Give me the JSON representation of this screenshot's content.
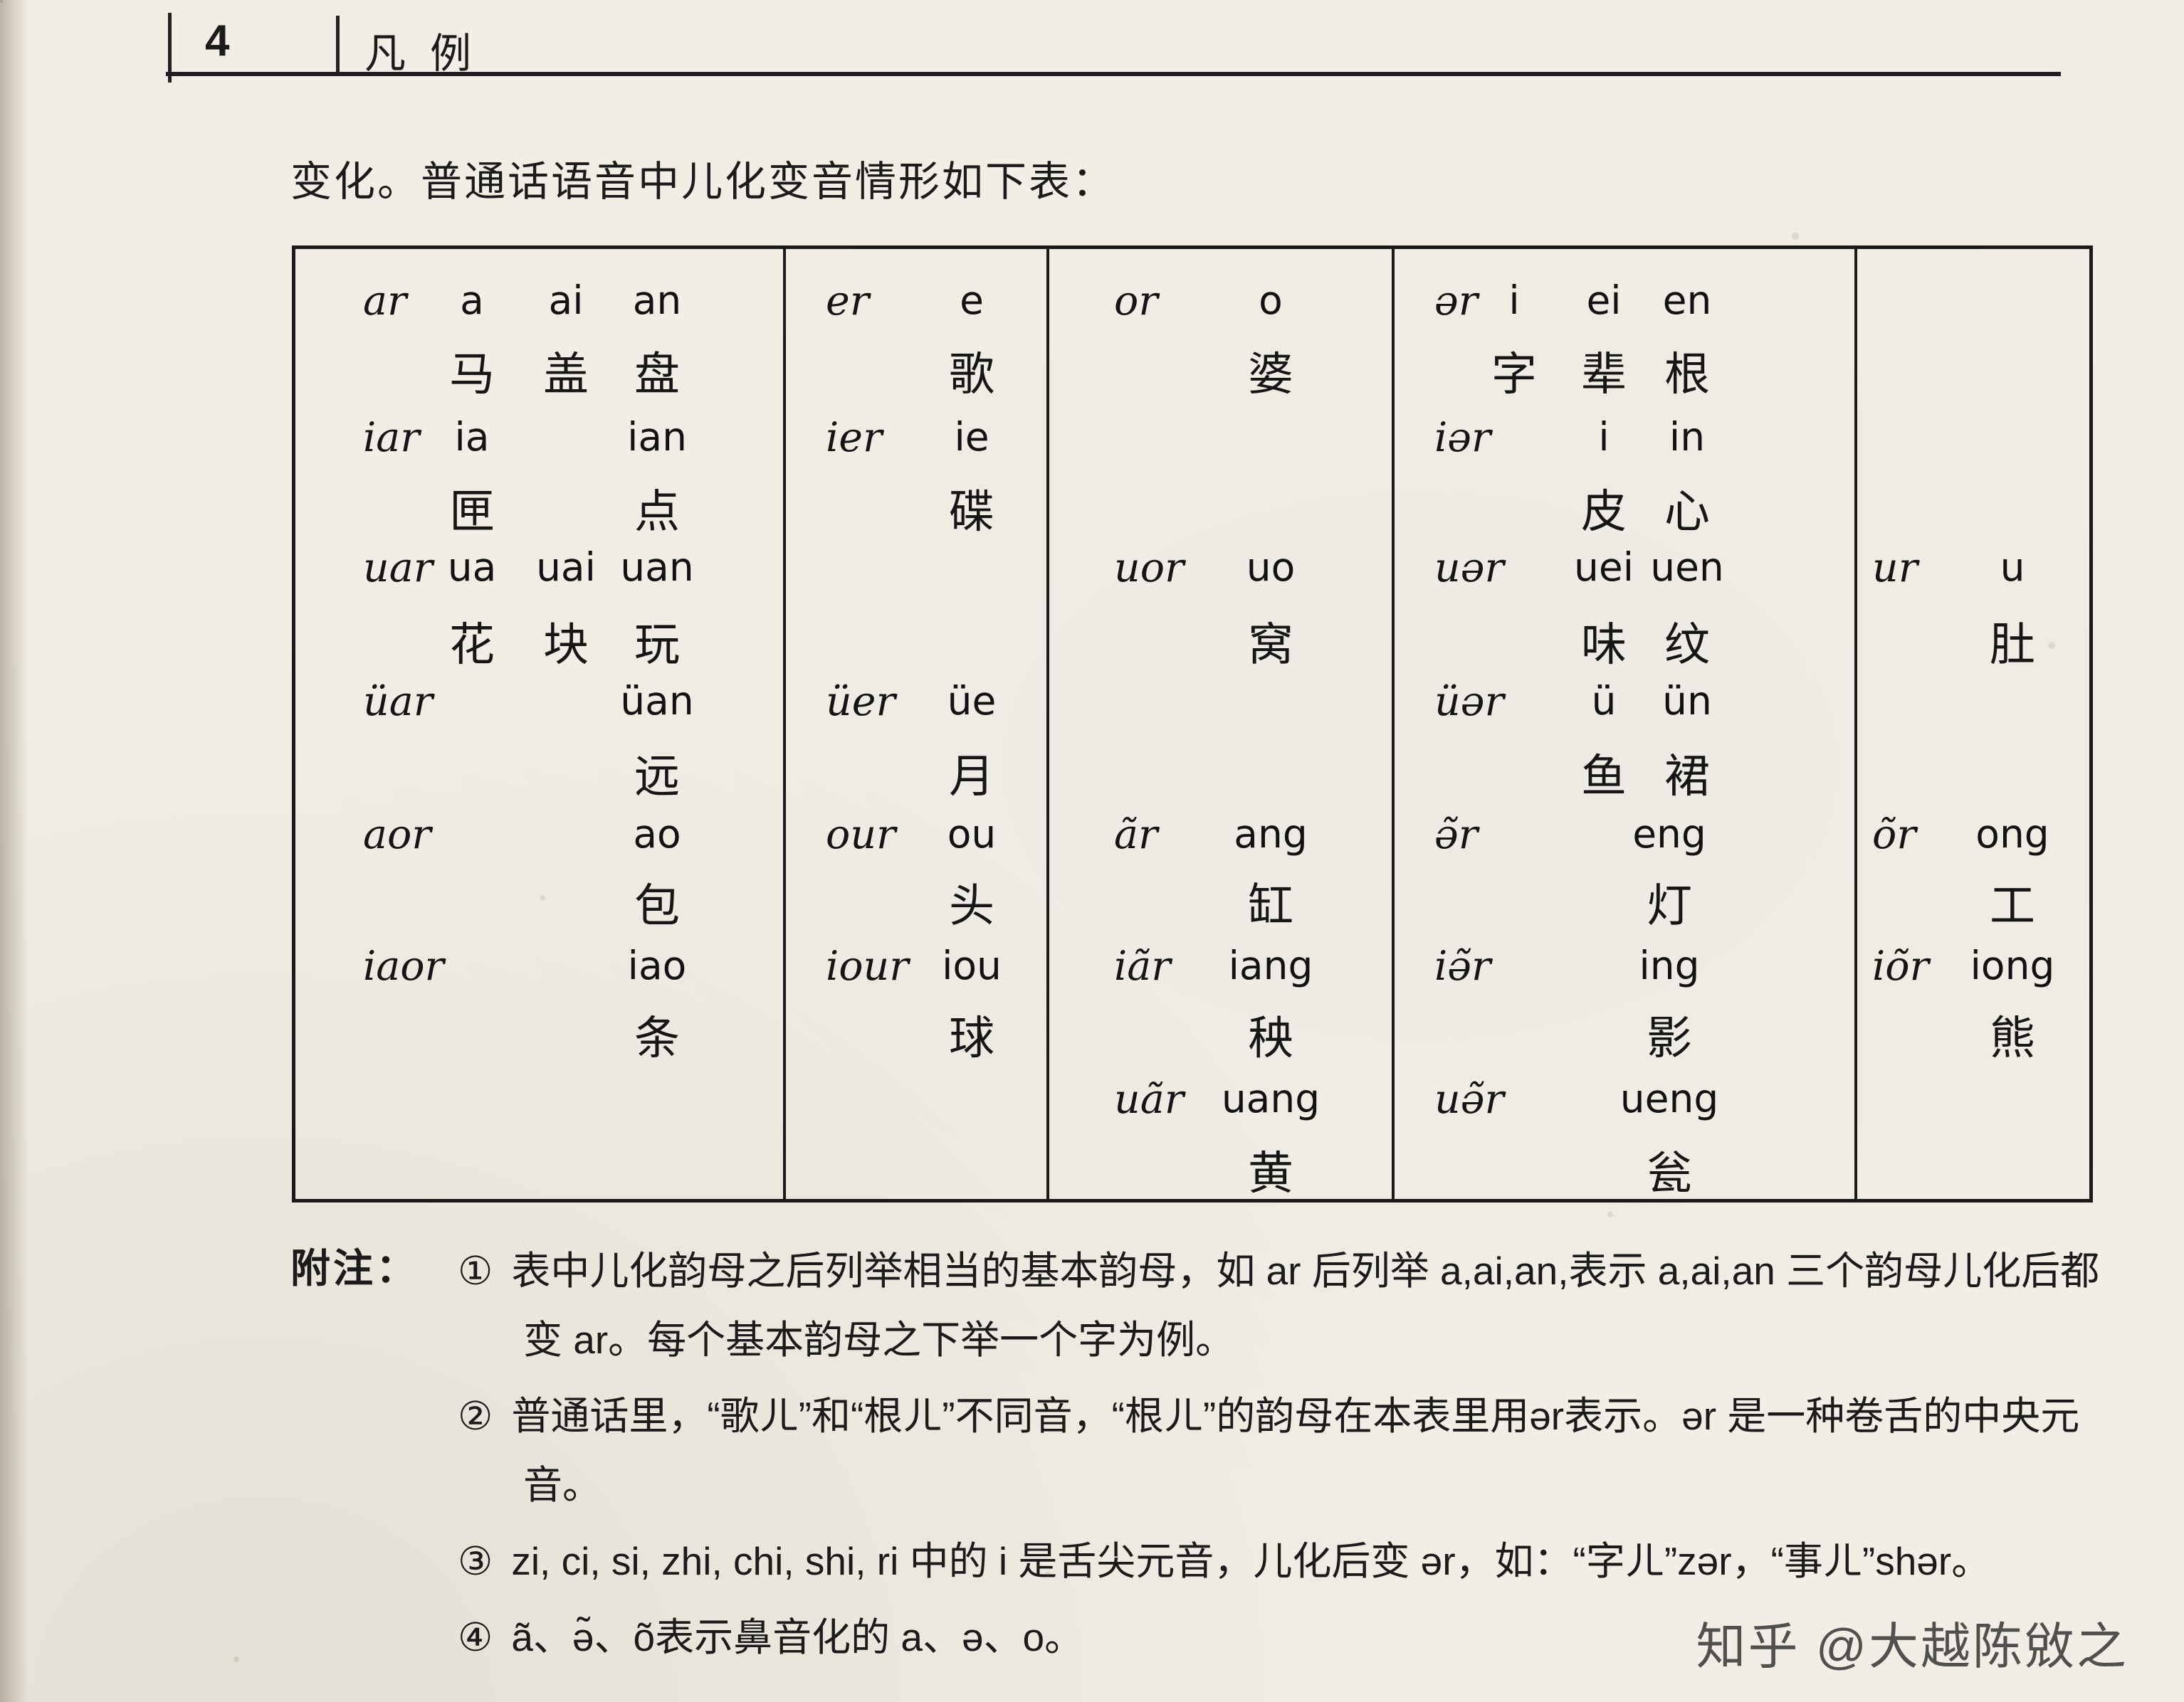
{
  "page": {
    "number": "4",
    "section_title": "凡例",
    "intro": "变化。普通话语音中儿化变音情形如下表：",
    "watermark": "知乎 @大越陈敓之"
  },
  "table": {
    "entries": [
      {
        "col": 0,
        "row": 0,
        "final": "ar",
        "subs": [
          {
            "p": "A",
            "t": "a",
            "c": "马"
          },
          {
            "p": "B",
            "t": "ai",
            "c": "盖"
          },
          {
            "p": "C",
            "t": "an",
            "c": "盘"
          }
        ]
      },
      {
        "col": 0,
        "row": 1,
        "final": "iar",
        "subs": [
          {
            "p": "A",
            "t": "ia",
            "c": "匣"
          },
          {
            "p": "C",
            "t": "ian",
            "c": "点"
          }
        ]
      },
      {
        "col": 0,
        "row": 2,
        "final": "uar",
        "subs": [
          {
            "p": "A",
            "t": "ua",
            "c": "花"
          },
          {
            "p": "B",
            "t": "uai",
            "c": "块"
          },
          {
            "p": "C",
            "t": "uan",
            "c": "玩"
          }
        ]
      },
      {
        "col": 0,
        "row": 3,
        "final": "üar",
        "subs": [
          {
            "p": "C",
            "t": "üan",
            "c": "远"
          }
        ]
      },
      {
        "col": 0,
        "row": 4,
        "final": "aor",
        "subs": [
          {
            "p": "C",
            "t": "ao",
            "c": "包"
          }
        ]
      },
      {
        "col": 0,
        "row": 5,
        "final": "iaor",
        "subs": [
          {
            "p": "C",
            "t": "iao",
            "c": "条"
          }
        ]
      },
      {
        "col": 1,
        "row": 0,
        "final": "er",
        "subs": [
          {
            "p": "S",
            "t": "e",
            "c": "歌"
          }
        ]
      },
      {
        "col": 1,
        "row": 1,
        "final": "ier",
        "subs": [
          {
            "p": "S",
            "t": "ie",
            "c": "碟"
          }
        ]
      },
      {
        "col": 1,
        "row": 3,
        "final": "üer",
        "subs": [
          {
            "p": "S",
            "t": "üe",
            "c": "月"
          }
        ]
      },
      {
        "col": 1,
        "row": 4,
        "final": "our",
        "subs": [
          {
            "p": "S",
            "t": "ou",
            "c": "头"
          }
        ]
      },
      {
        "col": 1,
        "row": 5,
        "final": "iour",
        "subs": [
          {
            "p": "S",
            "t": "iou",
            "c": "球"
          }
        ]
      },
      {
        "col": 2,
        "row": 0,
        "final": "or",
        "subs": [
          {
            "p": "S",
            "t": "o",
            "c": "婆"
          }
        ]
      },
      {
        "col": 2,
        "row": 2,
        "final": "uor",
        "subs": [
          {
            "p": "S",
            "t": "uo",
            "c": "窝"
          }
        ]
      },
      {
        "col": 2,
        "row": 4,
        "final": "ãr",
        "subs": [
          {
            "p": "S",
            "t": "ang",
            "c": "缸"
          }
        ]
      },
      {
        "col": 2,
        "row": 5,
        "final": "iãr",
        "subs": [
          {
            "p": "S",
            "t": "iang",
            "c": "秧"
          }
        ]
      },
      {
        "col": 2,
        "row": 6,
        "final": "uãr",
        "subs": [
          {
            "p": "S",
            "t": "uang",
            "c": "黄"
          }
        ]
      },
      {
        "col": 3,
        "row": 0,
        "final": "ər",
        "subs": [
          {
            "p": "A",
            "t": "i",
            "c": "字"
          },
          {
            "p": "B",
            "t": "ei",
            "c": "辈"
          },
          {
            "p": "C",
            "t": "en",
            "c": "根"
          }
        ]
      },
      {
        "col": 3,
        "row": 1,
        "final": "iər",
        "subs": [
          {
            "p": "B",
            "t": "i",
            "c": "皮"
          },
          {
            "p": "C",
            "t": "in",
            "c": "心"
          }
        ]
      },
      {
        "col": 3,
        "row": 2,
        "final": "uər",
        "subs": [
          {
            "p": "B",
            "t": "uei",
            "c": "味"
          },
          {
            "p": "C",
            "t": "uen",
            "c": "纹"
          }
        ]
      },
      {
        "col": 3,
        "row": 3,
        "final": "üər",
        "subs": [
          {
            "p": "B",
            "t": "ü",
            "c": "鱼"
          },
          {
            "p": "C",
            "t": "ün",
            "c": "裙"
          }
        ]
      },
      {
        "col": 3,
        "row": 4,
        "final": "ə̃r",
        "subs": [
          {
            "p": "N",
            "t": "eng",
            "c": "灯"
          }
        ]
      },
      {
        "col": 3,
        "row": 5,
        "final": "iə̃r",
        "subs": [
          {
            "p": "N",
            "t": "ing",
            "c": "影"
          }
        ]
      },
      {
        "col": 3,
        "row": 6,
        "final": "uə̃r",
        "subs": [
          {
            "p": "N",
            "t": "ueng",
            "c": "瓮"
          }
        ]
      },
      {
        "col": 4,
        "row": 2,
        "final": "ur",
        "subs": [
          {
            "p": "S",
            "t": "u",
            "c": "肚"
          }
        ]
      },
      {
        "col": 4,
        "row": 4,
        "final": "õr",
        "subs": [
          {
            "p": "S",
            "t": "ong",
            "c": "工"
          }
        ]
      },
      {
        "col": 4,
        "row": 5,
        "final": "iõr",
        "subs": [
          {
            "p": "S",
            "t": "iong",
            "c": "熊"
          }
        ]
      }
    ]
  },
  "notes": {
    "label": "附注：",
    "items": [
      {
        "marker": "①",
        "text": "表中儿化韵母之后列举相当的基本韵母，如 ar 后列举 a,ai,an,表示 a,ai,an 三个韵母儿化后都变 ar。每个基本韵母之下举一个字为例。"
      },
      {
        "marker": "②",
        "text": "普通话里，“歌ㄦ”和“根ㄦ”不同音，“根ㄦ”的韵母在本表里用ər表示。ər 是一种卷舌的中央元音。"
      },
      {
        "marker": "③",
        "text": "zi, ci, si, zhi, chi, shi, ri 中的 i 是舌尖元音，儿化后变 ər，如：“字ㄦ”zər，“事ㄦ”shər。"
      },
      {
        "marker": "④",
        "text": "ã、ə̃、õ表示鼻音化的 a、ə、o。"
      }
    ]
  }
}
